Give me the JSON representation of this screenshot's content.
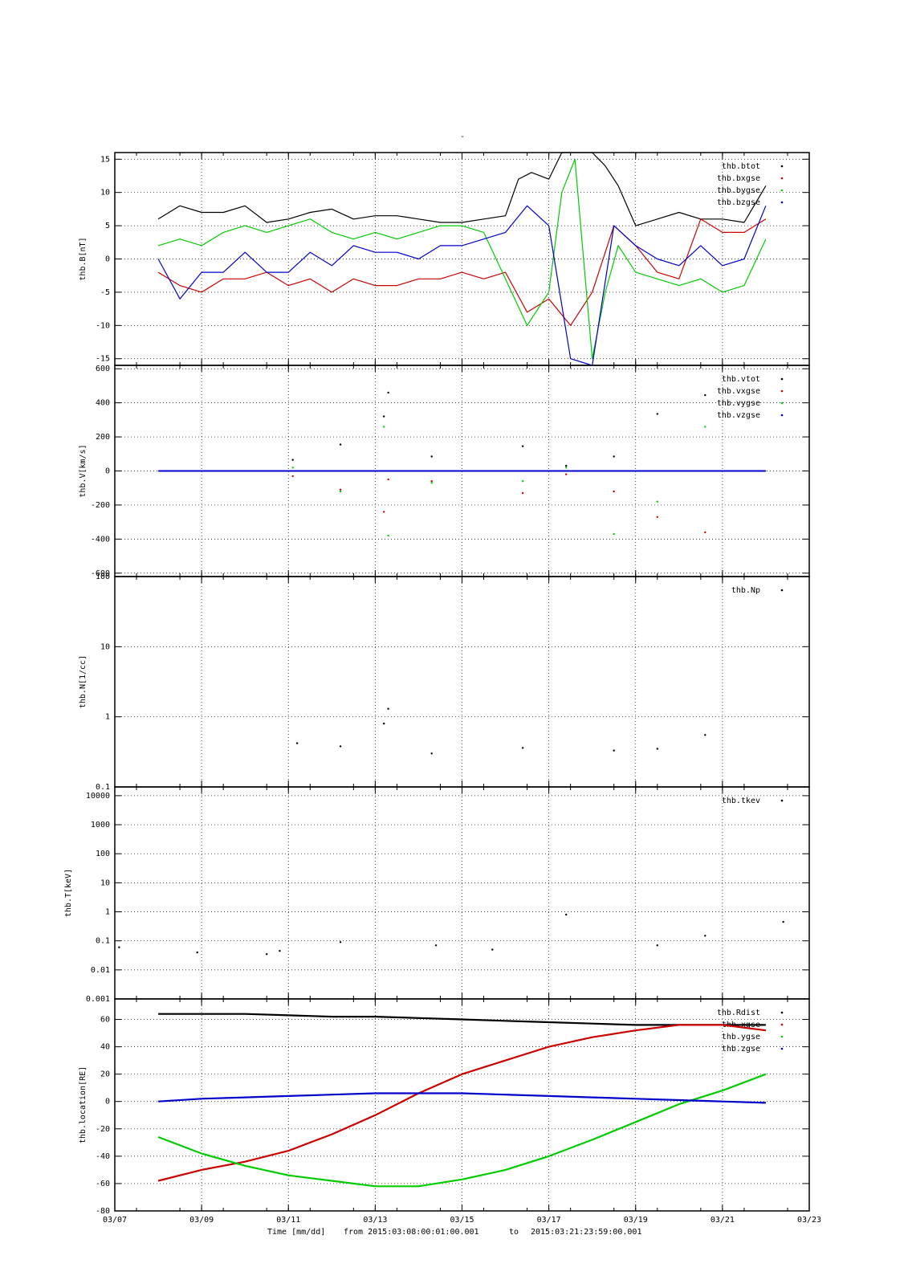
{
  "title": "-",
  "x_axis": {
    "ticks": [
      "03/07",
      "03/09",
      "03/11",
      "03/13",
      "03/15",
      "03/17",
      "03/19",
      "03/21",
      "03/23"
    ],
    "range_days": [
      7,
      23
    ],
    "label_time": "Time [mm/dd]",
    "label_from": "from 2015:03:08:00:01:00.001",
    "label_to": "to",
    "label_end": "2015:03:21:23:59:00.001"
  },
  "colors": {
    "black": "#000000",
    "red": "#cc0000",
    "green": "#00cc00",
    "blue": "#0000cc"
  },
  "chart_data": [
    {
      "type": "scatter",
      "ylabel": "thb.B[nT]",
      "ylim": [
        -16,
        16
      ],
      "yticks": [
        "15",
        "10",
        "5",
        "0",
        "-5",
        "-10",
        "-15"
      ],
      "legend": [
        "thb.btot",
        "thb.bxgse",
        "thb.bygse",
        "thb.bzgse"
      ],
      "grid": true,
      "series": [
        {
          "name": "thb.btot",
          "x": [
            8.0,
            8.5,
            9.0,
            9.5,
            10.0,
            10.5,
            11.0,
            11.5,
            12.0,
            12.5,
            13.0,
            13.5,
            14.0,
            14.5,
            15.0,
            15.5,
            16.0,
            16.3,
            16.6,
            17.0,
            17.3,
            17.6,
            18.0,
            18.3,
            18.6,
            19.0,
            19.5,
            20.0,
            20.5,
            21.0,
            21.5,
            22.0
          ],
          "y": [
            6,
            8,
            7,
            7,
            8,
            5.5,
            6,
            7,
            7.5,
            6,
            6.5,
            6.5,
            6,
            5.5,
            5.5,
            6,
            6.5,
            12,
            13,
            12,
            16,
            16,
            16,
            14,
            11,
            5,
            6,
            7,
            6,
            6,
            5.5,
            11
          ]
        },
        {
          "name": "thb.bxgse",
          "x": [
            8.0,
            8.5,
            9.0,
            9.5,
            10.0,
            10.5,
            11.0,
            11.5,
            12.0,
            12.5,
            13.0,
            13.5,
            14.0,
            14.5,
            15.0,
            15.5,
            16.0,
            16.5,
            17.0,
            17.5,
            18.0,
            18.5,
            19.0,
            19.5,
            20.0,
            20.5,
            21.0,
            21.5,
            22.0
          ],
          "y": [
            -2,
            -4,
            -5,
            -3,
            -3,
            -2,
            -4,
            -3,
            -5,
            -3,
            -4,
            -4,
            -3,
            -3,
            -2,
            -3,
            -2,
            -8,
            -6,
            -10,
            -5,
            5,
            2,
            -2,
            -3,
            6,
            4,
            4,
            6
          ]
        },
        {
          "name": "thb.bygse",
          "x": [
            8.0,
            8.5,
            9.0,
            9.5,
            10.0,
            10.5,
            11.0,
            11.5,
            12.0,
            12.5,
            13.0,
            13.5,
            14.0,
            14.5,
            15.0,
            15.5,
            16.0,
            16.5,
            17.0,
            17.3,
            17.6,
            18.0,
            18.3,
            18.6,
            19.0,
            19.5,
            20.0,
            20.5,
            21.0,
            21.5,
            22.0
          ],
          "y": [
            2,
            3,
            2,
            4,
            5,
            4,
            5,
            6,
            4,
            3,
            4,
            3,
            4,
            5,
            5,
            4,
            -3,
            -10,
            -5,
            10,
            15,
            -15,
            -5,
            2,
            -2,
            -3,
            -4,
            -3,
            -5,
            -4,
            3
          ]
        },
        {
          "name": "thb.bzgse",
          "x": [
            8.0,
            8.5,
            9.0,
            9.5,
            10.0,
            10.5,
            11.0,
            11.5,
            12.0,
            12.5,
            13.0,
            13.5,
            14.0,
            14.5,
            15.0,
            15.5,
            16.0,
            16.5,
            17.0,
            17.5,
            18.0,
            18.5,
            19.0,
            19.5,
            20.0,
            20.5,
            21.0,
            21.5,
            22.0
          ],
          "y": [
            0,
            -6,
            -2,
            -2,
            1,
            -2,
            -2,
            1,
            -1,
            2,
            1,
            1,
            0,
            2,
            2,
            3,
            4,
            8,
            5,
            -15,
            -16,
            5,
            2,
            0,
            -1,
            2,
            -1,
            0,
            8
          ]
        }
      ]
    },
    {
      "type": "scatter",
      "ylabel": "thb.V[km/s]",
      "ylim": [
        -620,
        620
      ],
      "yticks": [
        "600",
        "400",
        "200",
        "0",
        "-200",
        "-400",
        "-600"
      ],
      "legend": [
        "thb.vtot",
        "thb.vxgse",
        "thb.vygse",
        "thb.vzgse"
      ],
      "grid": true,
      "series": [
        {
          "name": "thb.vtot",
          "x": [
            11.1,
            12.2,
            13.2,
            13.3,
            14.3,
            16.4,
            17.4,
            18.5,
            19.5,
            20.6
          ],
          "y": [
            65,
            155,
            320,
            460,
            85,
            145,
            30,
            85,
            335,
            445
          ]
        },
        {
          "name": "thb.vxgse",
          "x": [
            11.1,
            12.2,
            13.2,
            13.3,
            14.3,
            16.4,
            17.4,
            18.5,
            19.5,
            20.6
          ],
          "y": [
            -30,
            -110,
            -240,
            -50,
            -60,
            -130,
            -20,
            -120,
            -270,
            -360
          ]
        },
        {
          "name": "thb.vygse",
          "x": [
            11.1,
            12.2,
            13.2,
            13.3,
            14.3,
            16.4,
            17.4,
            18.5,
            19.5,
            20.6
          ],
          "y": [
            20,
            -120,
            260,
            -380,
            -70,
            -60,
            20,
            -370,
            -180,
            260
          ]
        },
        {
          "name": "thb.vzgse",
          "x": [
            8.0,
            9.0,
            10.0,
            11.0,
            12.0,
            13.0,
            14.0,
            15.0,
            16.0,
            17.0,
            18.0,
            19.0,
            20.0,
            21.0,
            22.0
          ],
          "y": [
            0,
            0,
            0,
            0,
            0,
            0,
            0,
            0,
            0,
            0,
            0,
            0,
            0,
            0,
            0
          ]
        }
      ]
    },
    {
      "type": "scatter",
      "ylabel": "thb.N[1/cc]",
      "log_scale": true,
      "ylim": [
        0.1,
        100
      ],
      "yticks": [
        "100",
        "10",
        "1",
        "0.1"
      ],
      "legend": [
        "thb.Np"
      ],
      "grid": true,
      "series": [
        {
          "name": "thb.Np",
          "x": [
            11.2,
            12.2,
            13.2,
            13.3,
            14.3,
            16.4,
            18.5,
            19.5,
            20.6
          ],
          "y": [
            0.42,
            0.38,
            0.8,
            1.3,
            0.3,
            0.36,
            0.33,
            0.35,
            0.55
          ]
        }
      ]
    },
    {
      "type": "scatter",
      "ylabel": "thb.T[keV]",
      "log_scale": true,
      "ylim": [
        0.001,
        20000
      ],
      "yticks": [
        "10000",
        "1000",
        "100",
        "10",
        "1",
        "0.1",
        "0.01",
        "0.001"
      ],
      "legend": [
        "thb.tkev"
      ],
      "grid": true,
      "series": [
        {
          "name": "thb.tkev",
          "x": [
            7.1,
            8.9,
            10.5,
            10.8,
            12.2,
            14.4,
            15.7,
            17.4,
            19.5,
            20.6,
            22.4
          ],
          "y": [
            0.06,
            0.04,
            0.035,
            0.045,
            0.09,
            0.07,
            0.05,
            0.8,
            0.07,
            0.15,
            0.45
          ]
        }
      ]
    },
    {
      "type": "line",
      "ylabel": "thb.location[RE]",
      "ylim": [
        -80,
        75
      ],
      "yticks": [
        "60",
        "40",
        "20",
        "0",
        "-20",
        "-40",
        "-60",
        "-80"
      ],
      "legend": [
        "thb.Rdist",
        "thb.xgse",
        "thb.ygse",
        "thb.zgse"
      ],
      "grid": true,
      "series": [
        {
          "name": "thb.Rdist",
          "x": [
            8.0,
            9.0,
            10.0,
            11.0,
            12.0,
            13.0,
            14.0,
            15.0,
            16.0,
            17.0,
            18.0,
            19.0,
            20.0,
            21.0,
            22.0
          ],
          "y": [
            64,
            64,
            64,
            63,
            62,
            62,
            61,
            60,
            59,
            58,
            57,
            56,
            56,
            56,
            56
          ]
        },
        {
          "name": "thb.xgse",
          "x": [
            8.0,
            9.0,
            10.0,
            11.0,
            12.0,
            13.0,
            14.0,
            15.0,
            16.0,
            17.0,
            18.0,
            19.0,
            20.0,
            21.0,
            22.0
          ],
          "y": [
            -58,
            -50,
            -44,
            -36,
            -24,
            -10,
            6,
            20,
            30,
            40,
            47,
            52,
            56,
            56,
            52
          ]
        },
        {
          "name": "thb.ygse",
          "x": [
            8.0,
            9.0,
            10.0,
            11.0,
            12.0,
            13.0,
            14.0,
            15.0,
            16.0,
            17.0,
            18.0,
            19.0,
            20.0,
            21.0,
            22.0
          ],
          "y": [
            -26,
            -38,
            -47,
            -54,
            -58,
            -62,
            -62,
            -57,
            -50,
            -40,
            -28,
            -15,
            -2,
            8,
            20
          ]
        },
        {
          "name": "thb.zgse",
          "x": [
            8.0,
            9.0,
            10.0,
            11.0,
            12.0,
            13.0,
            14.0,
            15.0,
            16.0,
            17.0,
            18.0,
            19.0,
            20.0,
            21.0,
            22.0
          ],
          "y": [
            0,
            2,
            3,
            4,
            5,
            6,
            6,
            6,
            5,
            4,
            3,
            2,
            1,
            0,
            -1
          ]
        }
      ]
    }
  ]
}
